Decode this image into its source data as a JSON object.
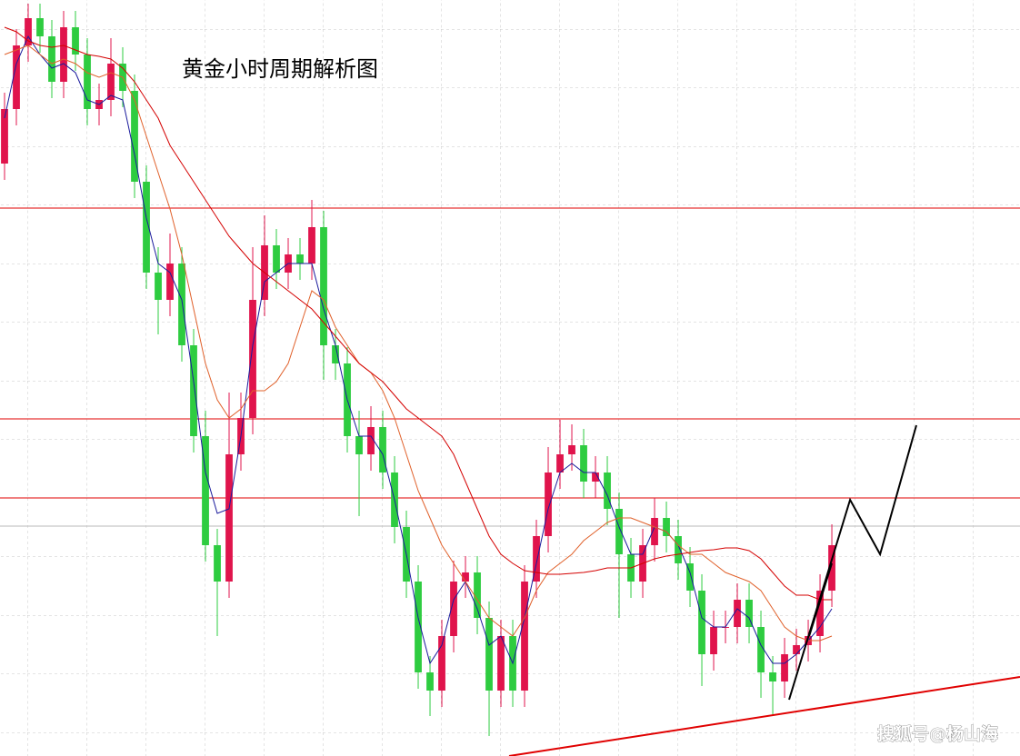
{
  "chart_data": {
    "type": "candlestick",
    "title": "黄金小时周期解析图",
    "watermark": "搜狐号@杨山海",
    "xlim": [
      -0.385,
      85.92
    ],
    "ylim": [
      0,
      832
    ],
    "grid": true,
    "up_color": "#e0144c",
    "down_color": "#2ecc40",
    "open": [
      652,
      712,
      782,
      812,
      792,
      742,
      802,
      772,
      712,
      722,
      762,
      732,
      632,
      532,
      502,
      542,
      452,
      352,
      232,
      192,
      332,
      372,
      502,
      562,
      532,
      552,
      542,
      582,
      452,
      432,
      352,
      332,
      362,
      312,
      252,
      192,
      92,
      72,
      132,
      192,
      202,
      152,
      72,
      132,
      72,
      192,
      242,
      312,
      332,
      342,
      302,
      312,
      272,
      222,
      192,
      232,
      262,
      242,
      212,
      182,
      112,
      142,
      142,
      172,
      142,
      92,
      82,
      112,
      122,
      132,
      182
    ],
    "high": [
      730,
      800,
      828,
      828,
      810,
      820,
      820,
      790,
      740,
      790,
      780,
      750,
      650,
      560,
      575,
      560,
      470,
      380,
      250,
      400,
      400,
      560,
      595,
      580,
      570,
      570,
      612,
      600,
      470,
      450,
      380,
      385,
      380,
      330,
      270,
      210,
      110,
      150,
      215,
      220,
      220,
      170,
      150,
      150,
      210,
      260,
      340,
      370,
      365,
      360,
      330,
      330,
      290,
      240,
      250,
      284,
      280,
      260,
      230,
      200,
      160,
      160,
      190,
      190,
      160,
      110,
      130,
      140,
      150,
      200,
      255
    ],
    "low": [
      634,
      694,
      764,
      774,
      724,
      724,
      754,
      694,
      694,
      704,
      714,
      614,
      514,
      464,
      484,
      434,
      334,
      214,
      132,
      174,
      314,
      354,
      484,
      514,
      514,
      524,
      524,
      414,
      414,
      334,
      264,
      314,
      294,
      234,
      174,
      74,
      44,
      54,
      114,
      174,
      134,
      22,
      54,
      54,
      54,
      174,
      224,
      294,
      314,
      284,
      284,
      254,
      152,
      174,
      174,
      214,
      224,
      194,
      164,
      77,
      94,
      124,
      124,
      124,
      64,
      44,
      64,
      94,
      104,
      114,
      164
    ],
    "close": [
      712,
      782,
      812,
      792,
      742,
      802,
      772,
      712,
      722,
      762,
      732,
      632,
      532,
      502,
      542,
      452,
      352,
      232,
      192,
      332,
      372,
      502,
      562,
      532,
      552,
      542,
      582,
      452,
      432,
      352,
      332,
      362,
      312,
      252,
      192,
      92,
      72,
      132,
      192,
      202,
      152,
      72,
      132,
      72,
      192,
      242,
      312,
      332,
      342,
      302,
      312,
      272,
      222,
      192,
      232,
      262,
      242,
      212,
      182,
      112,
      142,
      142,
      172,
      142,
      92,
      82,
      112,
      122,
      132,
      182,
      232
    ],
    "series": [
      {
        "color": "#1a1a9c",
        "values": [
          702,
          762,
          792,
          772,
          757,
          762,
          752,
          722,
          717,
          727,
          722,
          662,
          592,
          542,
          532,
          502,
          412,
          312,
          267,
          272,
          352,
          452,
          522,
          532,
          542,
          542,
          542,
          492,
          452,
          392,
          352,
          352,
          332,
          282,
          222,
          152,
          102,
          122,
          172,
          192,
          162,
          122,
          132,
          102,
          152,
          212,
          272,
          312,
          322,
          312,
          312,
          287,
          252,
          222,
          222,
          252,
          247,
          232,
          202,
          152,
          142,
          142,
          162,
          152,
          122,
          102,
          102,
          112,
          127,
          142,
          162
        ]
      },
      {
        "color": "#e0602a",
        "values": [
          772,
          777,
          782,
          772,
          762,
          767,
          762,
          752,
          747,
          752,
          747,
          722,
          682,
          642,
          602,
          552,
          492,
          432,
          392,
          372,
          382,
          402,
          402,
          412,
          432,
          472,
          512,
          502,
          472,
          452,
          432,
          422,
          402,
          372,
          332,
          292,
          262,
          232,
          212,
          192,
          172,
          152,
          142,
          132,
          152,
          182,
          202,
          212,
          222,
          237,
          247,
          257,
          262,
          262,
          257,
          252,
          247,
          232,
          222,
          222,
          212,
          202,
          197,
          192,
          182,
          162,
          142,
          132,
          127,
          127,
          132
        ]
      },
      {
        "color": "#d40000",
        "values": [
          802,
          797,
          787,
          782,
          780,
          782,
          777,
          772,
          770,
          767,
          757,
          742,
          722,
          702,
          672,
          652,
          632,
          612,
          592,
          572,
          557,
          542,
          532,
          522,
          512,
          502,
          492,
          477,
          462,
          447,
          432,
          422,
          412,
          397,
          382,
          372,
          362,
          352,
          332,
          302,
          272,
          242,
          222,
          212,
          204,
          202,
          200,
          200,
          201,
          202,
          204,
          207,
          207,
          207,
          212,
          217,
          220,
          222,
          224,
          226,
          227,
          229,
          229,
          226,
          217,
          202,
          187,
          177,
          177,
          172,
          172
        ]
      }
    ],
    "levels": [
      {
        "value": 603,
        "color": "#e00000"
      },
      {
        "value": 371,
        "color": "#e00000"
      },
      {
        "value": 284,
        "color": "#e00000"
      },
      {
        "value": 253,
        "color": "#b8b8b8"
      }
    ],
    "lines": [
      {
        "color": "#e00000",
        "x": [
          42.69,
          85.92
        ],
        "values": [
          0,
          87
        ]
      },
      {
        "color": "#000000",
        "x": [
          66.38,
          71.54,
          74.08,
          77.15
        ],
        "values": [
          62,
          282,
          222,
          364
        ]
      },
      {
        "color": "#000000",
        "x": [
          68.08,
          70
        ],
        "values": [
          132,
          212
        ]
      }
    ]
  }
}
